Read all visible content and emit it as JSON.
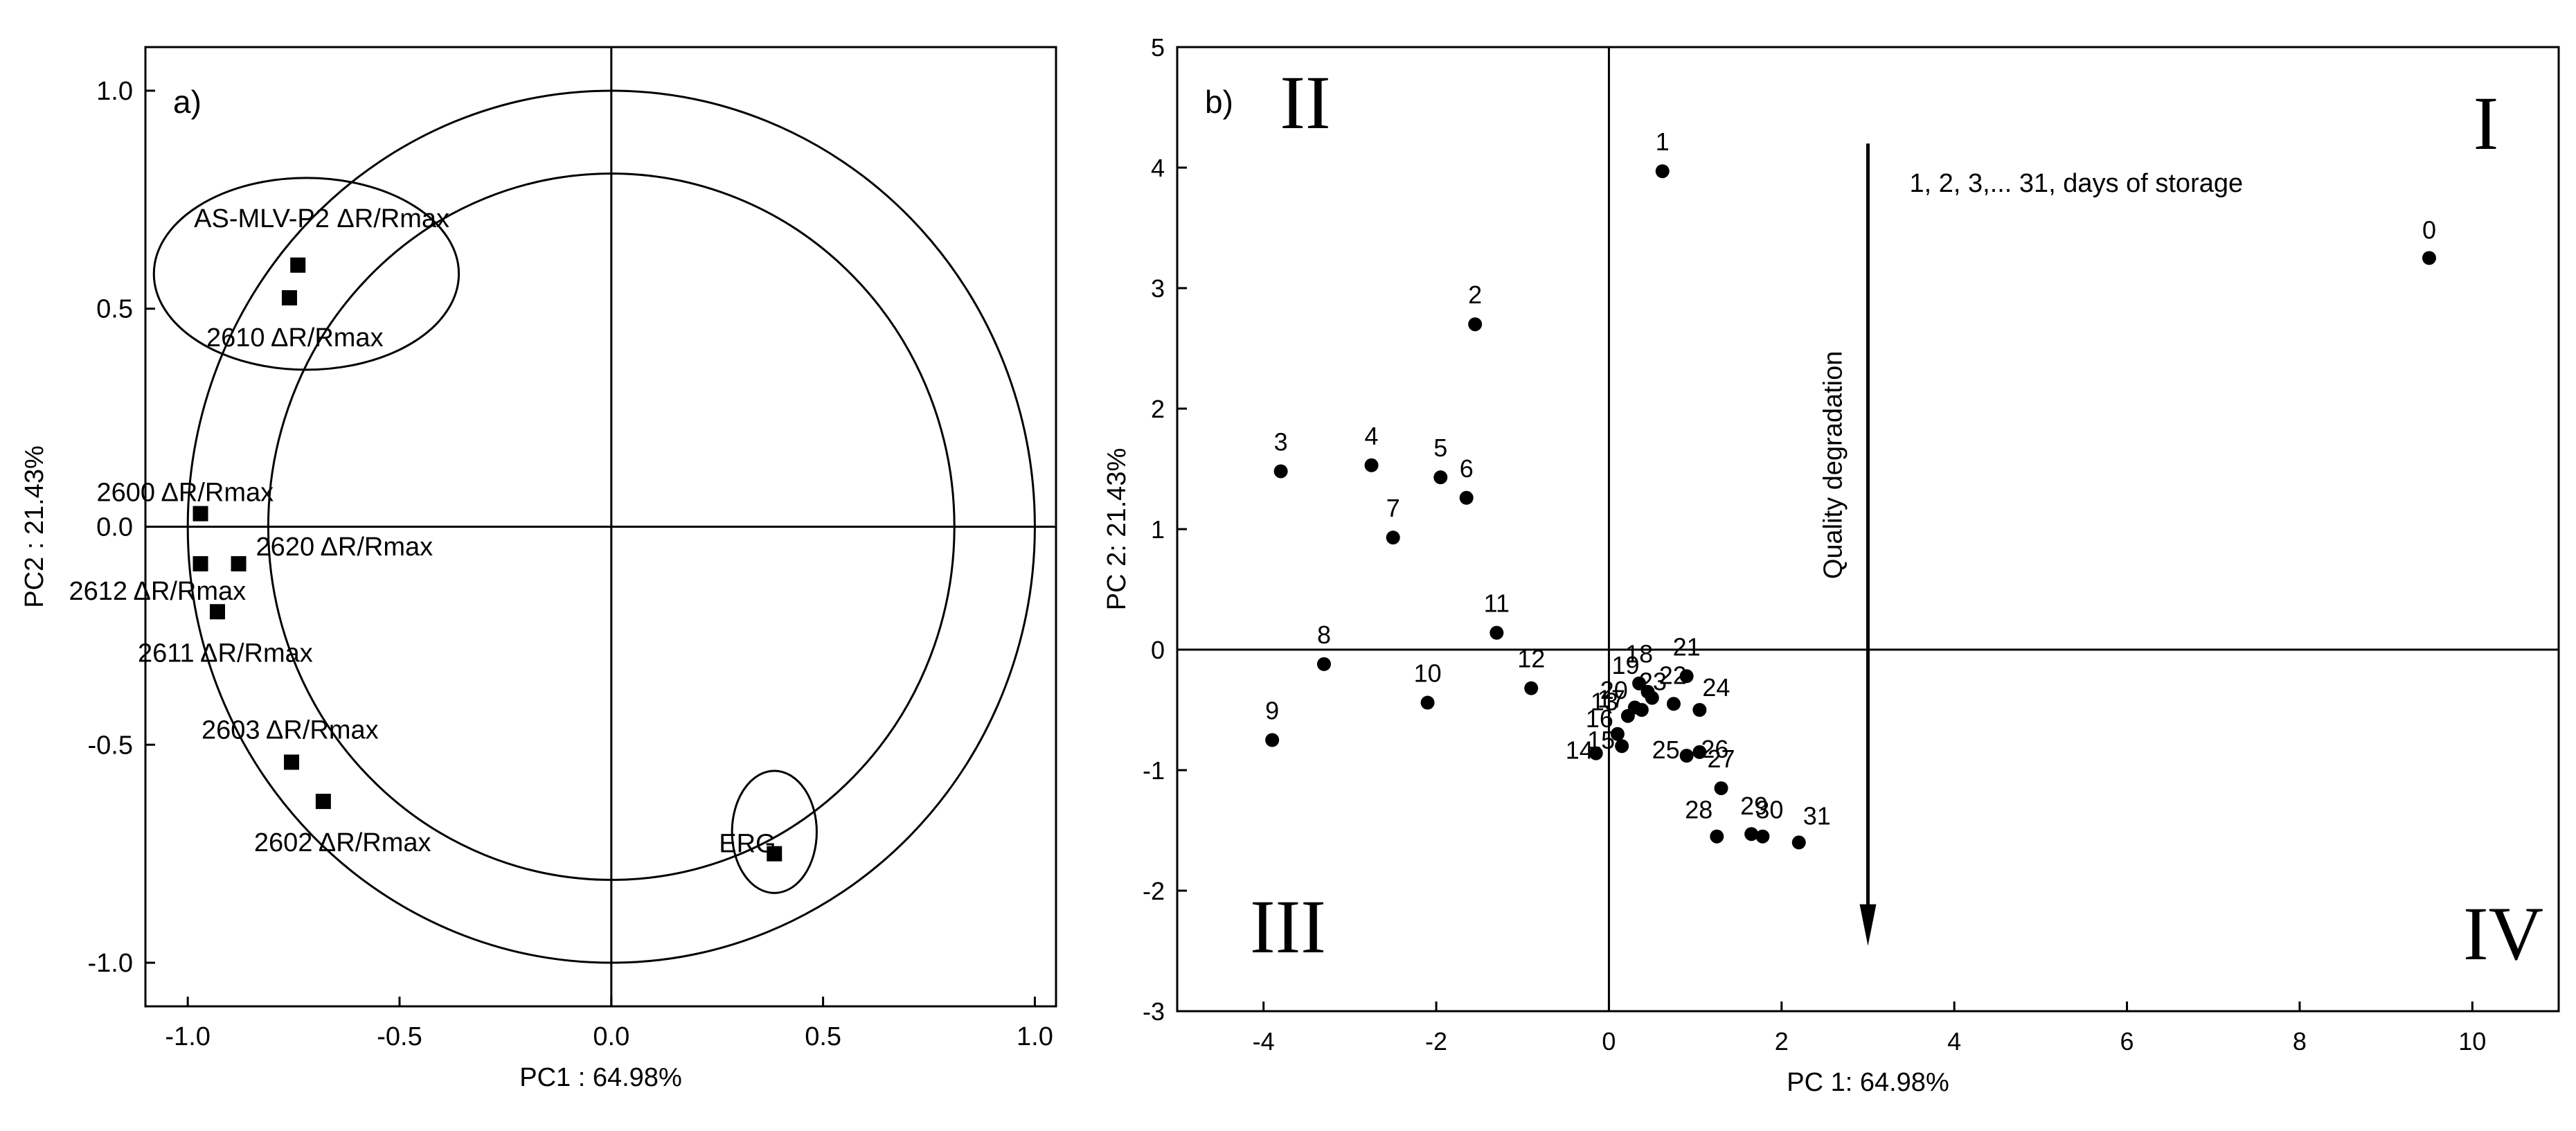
{
  "chart_data": [
    {
      "type": "scatter",
      "panel_label": "a)",
      "xlabel": "PC1 : 64.98%",
      "ylabel": "PC2 : 21.43%",
      "xlim": [
        -1.1,
        1.05
      ],
      "ylim": [
        -1.1,
        1.1
      ],
      "xticks": [
        -1.0,
        -0.5,
        0.0,
        0.5,
        1.0
      ],
      "xtick_labels": [
        "-1.0",
        "-0.5",
        "0.0",
        "0.5",
        "1.0"
      ],
      "yticks": [
        -1.0,
        -0.5,
        0.0,
        0.5,
        1.0
      ],
      "ytick_labels": [
        "-1.0",
        "-0.5",
        "0.0",
        "0.5",
        "1.0"
      ],
      "reference_circles": [
        {
          "center": [
            0,
            0
          ],
          "radius": 1.0
        },
        {
          "center": [
            0,
            0
          ],
          "radius": 0.81
        }
      ],
      "grouping_ellipses": [
        {
          "center": [
            -0.72,
            0.58
          ],
          "rx": 0.36,
          "ry": 0.22
        },
        {
          "center": [
            0.385,
            -0.7
          ],
          "rx": 0.1,
          "ry": 0.14
        }
      ],
      "points": [
        {
          "label": "AS-MLV-P2 ΔR/Rmax",
          "x": -0.74,
          "y": 0.6
        },
        {
          "label": "2610 ΔR/Rmax",
          "x": -0.76,
          "y": 0.525
        },
        {
          "label": "2600 ΔR/Rmax",
          "x": -0.97,
          "y": 0.03
        },
        {
          "label": "2620 ΔR/Rmax",
          "x": -0.88,
          "y": -0.085
        },
        {
          "label": "2612 ΔR/Rmax",
          "x": -0.97,
          "y": -0.085
        },
        {
          "label": "2611 ΔR/Rmax",
          "x": -0.93,
          "y": -0.195
        },
        {
          "label": "2603 ΔR/Rmax",
          "x": -0.755,
          "y": -0.54
        },
        {
          "label": "2602 ΔR/Rmax",
          "x": -0.68,
          "y": -0.63
        },
        {
          "label": "ERG",
          "x": 0.385,
          "y": -0.75
        }
      ]
    },
    {
      "type": "scatter",
      "panel_label": "b)",
      "xlabel": "PC 1: 64.98%",
      "ylabel": "PC 2: 21.43%",
      "xlim": [
        -5.0,
        11.0
      ],
      "ylim": [
        -3,
        5
      ],
      "xticks": [
        -4,
        -2,
        0,
        2,
        4,
        6,
        8,
        10
      ],
      "xtick_labels": [
        "-4",
        "-2",
        "0",
        "2",
        "4",
        "6",
        "8",
        "10"
      ],
      "yticks": [
        -3,
        -2,
        -1,
        0,
        1,
        2,
        3,
        4,
        5
      ],
      "ytick_labels": [
        "-3",
        "-2",
        "-1",
        "0",
        "1",
        "2",
        "3",
        "4",
        "5"
      ],
      "quadrant_labels": [
        "I",
        "II",
        "III",
        "IV"
      ],
      "annotations": {
        "days_note": "1, 2, 3,... 31, days of storage",
        "arrow_label": "Quality degradation"
      },
      "arrow": {
        "x": 3.0,
        "y_start": 4.2,
        "y_end": -2.4
      },
      "points": [
        {
          "label": "0",
          "x": 9.5,
          "y": 3.25
        },
        {
          "label": "1",
          "x": 0.62,
          "y": 3.97
        },
        {
          "label": "2",
          "x": -1.55,
          "y": 2.7
        },
        {
          "label": "3",
          "x": -3.8,
          "y": 1.48
        },
        {
          "label": "4",
          "x": -2.75,
          "y": 1.53
        },
        {
          "label": "5",
          "x": -1.95,
          "y": 1.43
        },
        {
          "label": "6",
          "x": -1.65,
          "y": 1.26
        },
        {
          "label": "7",
          "x": -2.5,
          "y": 0.93
        },
        {
          "label": "8",
          "x": -3.3,
          "y": -0.12
        },
        {
          "label": "9",
          "x": -3.9,
          "y": -0.75
        },
        {
          "label": "10",
          "x": -2.1,
          "y": -0.44
        },
        {
          "label": "11",
          "x": -1.3,
          "y": 0.14
        },
        {
          "label": "12",
          "x": -0.9,
          "y": -0.32
        },
        {
          "label": "13",
          "x": 0.22,
          "y": -0.55
        },
        {
          "label": "14",
          "x": -0.15,
          "y": -0.86
        },
        {
          "label": "15",
          "x": 0.15,
          "y": -0.8
        },
        {
          "label": "16",
          "x": 0.1,
          "y": -0.7
        },
        {
          "label": "17",
          "x": 0.3,
          "y": -0.48
        },
        {
          "label": "18",
          "x": 0.35,
          "y": -0.28
        },
        {
          "label": "19",
          "x": 0.45,
          "y": -0.35
        },
        {
          "label": "20",
          "x": 0.38,
          "y": -0.5
        },
        {
          "label": "21",
          "x": 0.9,
          "y": -0.22
        },
        {
          "label": "22",
          "x": 0.5,
          "y": -0.4
        },
        {
          "label": "23",
          "x": 0.75,
          "y": -0.45
        },
        {
          "label": "24",
          "x": 1.05,
          "y": -0.5
        },
        {
          "label": "25",
          "x": 0.9,
          "y": -0.88
        },
        {
          "label": "26",
          "x": 1.05,
          "y": -0.85
        },
        {
          "label": "27",
          "x": 1.3,
          "y": -1.15
        },
        {
          "label": "28",
          "x": 1.25,
          "y": -1.55
        },
        {
          "label": "29",
          "x": 1.65,
          "y": -1.53
        },
        {
          "label": "30",
          "x": 1.78,
          "y": -1.55
        },
        {
          "label": "31",
          "x": 2.2,
          "y": -1.6
        }
      ]
    }
  ]
}
